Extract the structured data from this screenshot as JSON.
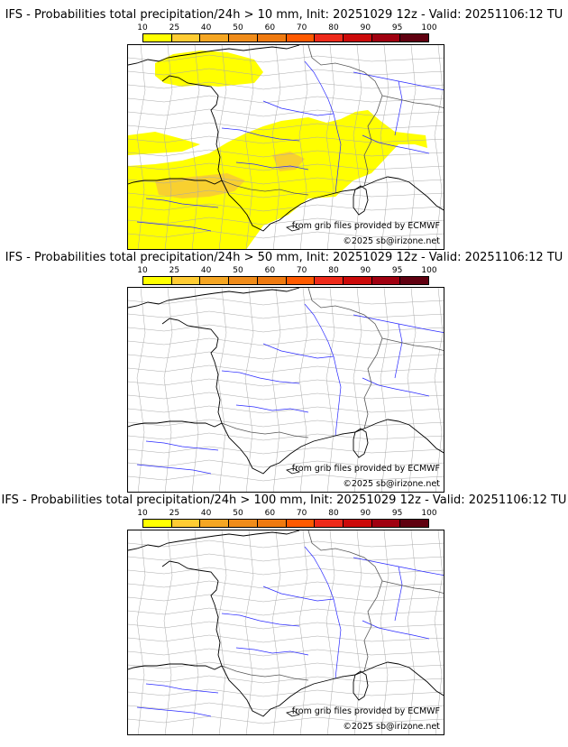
{
  "colorbar": {
    "ticks": [
      "10",
      "25",
      "40",
      "50",
      "60",
      "70",
      "80",
      "90",
      "95",
      "100"
    ],
    "colors": [
      "#ffff00",
      "#ffcc33",
      "#f5a623",
      "#f08c1a",
      "#ef7a10",
      "#ff5a00",
      "#ee2a1a",
      "#cc0a0a",
      "#a00010",
      "#600010"
    ]
  },
  "panels": [
    {
      "title": "IFS - Probabilities total precipitation/24h > 10 mm, Init: 20251029 12z - Valid: 20251106:12 TU",
      "source_note": "from grib files provided by ECMWF",
      "copyright": "©2025 sb@irizone.net",
      "precip_shading": true
    },
    {
      "title": "IFS - Probabilities total precipitation/24h > 50 mm, Init: 20251029 12z - Valid: 20251106:12 TU",
      "source_note": "from grib files provided by ECMWF",
      "copyright": "©2025 sb@irizone.net",
      "precip_shading": false
    },
    {
      "title": "IFS - Probabilities total precipitation/24h > 100 mm, Init: 20251029 12z - Valid: 20251106:12 TU",
      "source_note": "from grib files provided by ECMWF",
      "copyright": "©2025 sb@irizone.net",
      "precip_shading": false
    }
  ]
}
